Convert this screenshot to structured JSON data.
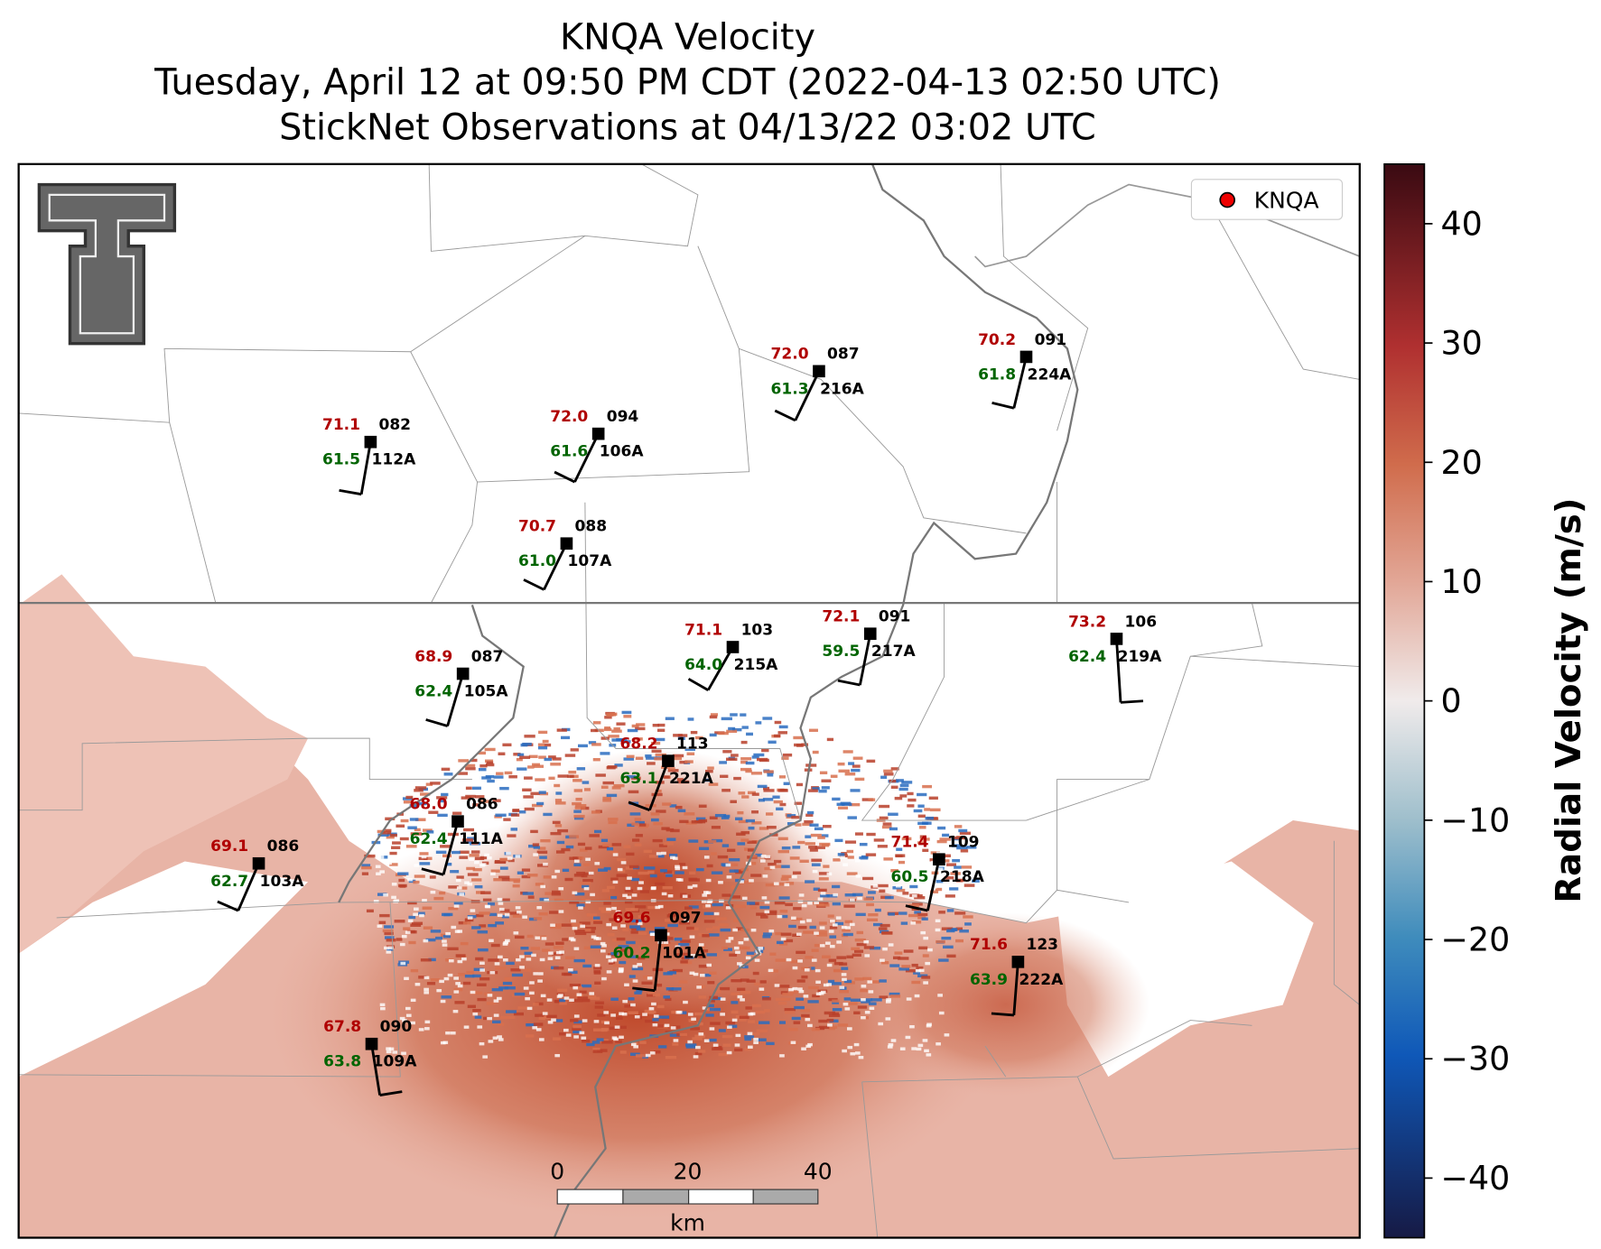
{
  "title_lines": [
    "KNQA Velocity",
    "Tuesday, April 12 at 09:50 PM CDT (2022-04-13 02:50 UTC)",
    "StickNet Observations at 04/13/22 03:02 UTC"
  ],
  "legend": {
    "label": "KNQA"
  },
  "stations": [
    {
      "id": "112A",
      "temp": "71.1",
      "dewpoint": "61.5",
      "pressure": "082"
    },
    {
      "id": "106A",
      "temp": "72.0",
      "dewpoint": "61.6",
      "pressure": "094"
    },
    {
      "id": "216A",
      "temp": "72.0",
      "dewpoint": "61.3",
      "pressure": "087"
    },
    {
      "id": "224A",
      "temp": "70.2",
      "dewpoint": "61.8",
      "pressure": "091"
    },
    {
      "id": "107A",
      "temp": "70.7",
      "dewpoint": "61.0",
      "pressure": "088"
    },
    {
      "id": "215A",
      "temp": "71.1",
      "dewpoint": "64.0",
      "pressure": "103"
    },
    {
      "id": "217A",
      "temp": "72.1",
      "dewpoint": "59.5",
      "pressure": "091"
    },
    {
      "id": "219A",
      "temp": "73.2",
      "dewpoint": "62.4",
      "pressure": "106"
    },
    {
      "id": "105A",
      "temp": "68.9",
      "dewpoint": "62.4",
      "pressure": "087"
    },
    {
      "id": "221A",
      "temp": "68.2",
      "dewpoint": "63.1",
      "pressure": "113"
    },
    {
      "id": "111A",
      "temp": "68.0",
      "dewpoint": "62.4",
      "pressure": "086"
    },
    {
      "id": "103A",
      "temp": "69.1",
      "dewpoint": "62.7",
      "pressure": "086"
    },
    {
      "id": "218A",
      "temp": "71.4",
      "dewpoint": "60.5",
      "pressure": "109"
    },
    {
      "id": "101A",
      "temp": "69.6",
      "dewpoint": "60.2",
      "pressure": "097"
    },
    {
      "id": "222A",
      "temp": "71.6",
      "dewpoint": "63.9",
      "pressure": "123"
    },
    {
      "id": "109A",
      "temp": "67.8",
      "dewpoint": "63.8",
      "pressure": "090"
    }
  ],
  "scale_bar": {
    "ticks": [
      "0",
      "20",
      "40"
    ],
    "unit": "km"
  },
  "colorbar": {
    "label": "Radial Velocity (m/s)",
    "lim": [
      -45,
      45
    ],
    "ticks": [
      {
        "value": -40,
        "label": "−40"
      },
      {
        "value": -30,
        "label": "−30"
      },
      {
        "value": -20,
        "label": "−20"
      },
      {
        "value": -10,
        "label": "−10"
      },
      0,
      10,
      20,
      30,
      40
    ]
  }
}
